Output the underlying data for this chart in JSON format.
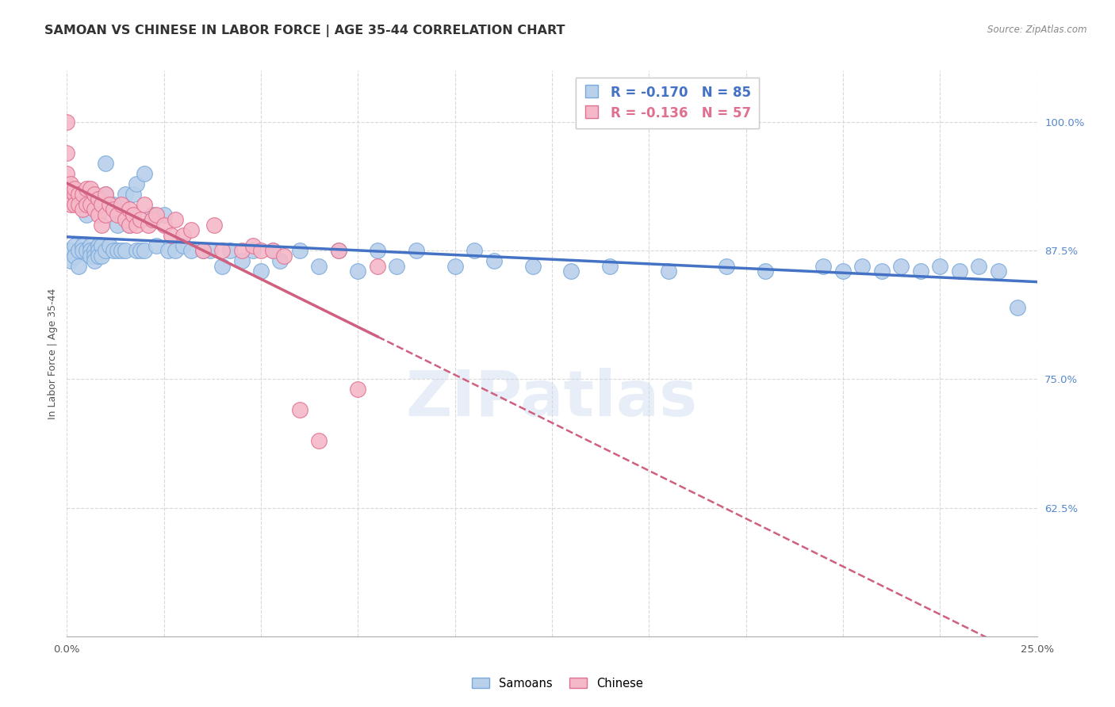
{
  "title": "SAMOAN VS CHINESE IN LABOR FORCE | AGE 35-44 CORRELATION CHART",
  "source": "Source: ZipAtlas.com",
  "ylabel": "In Labor Force | Age 35-44",
  "right_yticks": [
    0.625,
    0.75,
    0.875,
    1.0
  ],
  "right_yticklabels": [
    "62.5%",
    "75.0%",
    "87.5%",
    "100.0%"
  ],
  "xlim": [
    0.0,
    0.25
  ],
  "ylim": [
    0.5,
    1.05
  ],
  "watermark": "ZIPatlas",
  "legend_blue_label": "R = -0.170   N = 85",
  "legend_pink_label": "R = -0.136   N = 57",
  "legend_bottom_samoans": "Samoans",
  "legend_bottom_chinese": "Chinese",
  "samoans_x": [
    0.001,
    0.001,
    0.002,
    0.002,
    0.003,
    0.003,
    0.003,
    0.004,
    0.004,
    0.005,
    0.005,
    0.005,
    0.006,
    0.006,
    0.006,
    0.007,
    0.007,
    0.007,
    0.008,
    0.008,
    0.008,
    0.009,
    0.009,
    0.01,
    0.01,
    0.01,
    0.011,
    0.012,
    0.012,
    0.013,
    0.013,
    0.014,
    0.014,
    0.015,
    0.015,
    0.016,
    0.017,
    0.018,
    0.018,
    0.019,
    0.02,
    0.02,
    0.022,
    0.023,
    0.025,
    0.026,
    0.028,
    0.03,
    0.032,
    0.035,
    0.037,
    0.04,
    0.042,
    0.045,
    0.048,
    0.05,
    0.053,
    0.055,
    0.06,
    0.065,
    0.07,
    0.075,
    0.08,
    0.085,
    0.09,
    0.1,
    0.105,
    0.11,
    0.12,
    0.13,
    0.14,
    0.155,
    0.17,
    0.18,
    0.195,
    0.2,
    0.205,
    0.21,
    0.215,
    0.22,
    0.225,
    0.23,
    0.235,
    0.24,
    0.245
  ],
  "samoans_y": [
    0.875,
    0.865,
    0.88,
    0.87,
    0.92,
    0.875,
    0.86,
    0.88,
    0.875,
    0.93,
    0.91,
    0.875,
    0.88,
    0.875,
    0.87,
    0.875,
    0.87,
    0.865,
    0.88,
    0.875,
    0.87,
    0.88,
    0.87,
    0.96,
    0.93,
    0.875,
    0.88,
    0.92,
    0.875,
    0.9,
    0.875,
    0.91,
    0.875,
    0.93,
    0.875,
    0.9,
    0.93,
    0.94,
    0.875,
    0.875,
    0.95,
    0.875,
    0.91,
    0.88,
    0.91,
    0.875,
    0.875,
    0.88,
    0.875,
    0.875,
    0.875,
    0.86,
    0.875,
    0.865,
    0.875,
    0.855,
    0.875,
    0.865,
    0.875,
    0.86,
    0.875,
    0.855,
    0.875,
    0.86,
    0.875,
    0.86,
    0.875,
    0.865,
    0.86,
    0.855,
    0.86,
    0.855,
    0.86,
    0.855,
    0.86,
    0.855,
    0.86,
    0.855,
    0.86,
    0.855,
    0.86,
    0.855,
    0.86,
    0.855,
    0.82
  ],
  "chinese_x": [
    0.0,
    0.0,
    0.0,
    0.001,
    0.001,
    0.001,
    0.002,
    0.002,
    0.002,
    0.003,
    0.003,
    0.004,
    0.004,
    0.005,
    0.005,
    0.006,
    0.006,
    0.007,
    0.007,
    0.008,
    0.008,
    0.009,
    0.009,
    0.01,
    0.01,
    0.011,
    0.012,
    0.013,
    0.014,
    0.015,
    0.016,
    0.016,
    0.017,
    0.018,
    0.019,
    0.02,
    0.021,
    0.022,
    0.023,
    0.025,
    0.027,
    0.028,
    0.03,
    0.032,
    0.035,
    0.038,
    0.04,
    0.045,
    0.048,
    0.05,
    0.053,
    0.056,
    0.06,
    0.065,
    0.07,
    0.075,
    0.08
  ],
  "chinese_y": [
    1.0,
    0.97,
    0.95,
    0.94,
    0.93,
    0.92,
    0.93,
    0.92,
    0.935,
    0.93,
    0.92,
    0.93,
    0.915,
    0.935,
    0.92,
    0.935,
    0.92,
    0.93,
    0.915,
    0.925,
    0.91,
    0.92,
    0.9,
    0.93,
    0.91,
    0.92,
    0.915,
    0.91,
    0.92,
    0.905,
    0.915,
    0.9,
    0.91,
    0.9,
    0.905,
    0.92,
    0.9,
    0.905,
    0.91,
    0.9,
    0.89,
    0.905,
    0.89,
    0.895,
    0.875,
    0.9,
    0.875,
    0.875,
    0.88,
    0.875,
    0.875,
    0.87,
    0.72,
    0.69,
    0.875,
    0.74,
    0.86
  ],
  "blue_scatter_color": "#b8d0ea",
  "blue_edge_color": "#7aaadd",
  "pink_scatter_color": "#f5b8c8",
  "pink_edge_color": "#e07090",
  "blue_line_color": "#4472C4",
  "pink_line_color": "#d06080",
  "grid_color": "#d8d8d8",
  "background_color": "#ffffff",
  "title_fontsize": 11.5,
  "axis_fontsize": 9,
  "tick_fontsize": 9.5,
  "right_tick_color": "#5588cc"
}
